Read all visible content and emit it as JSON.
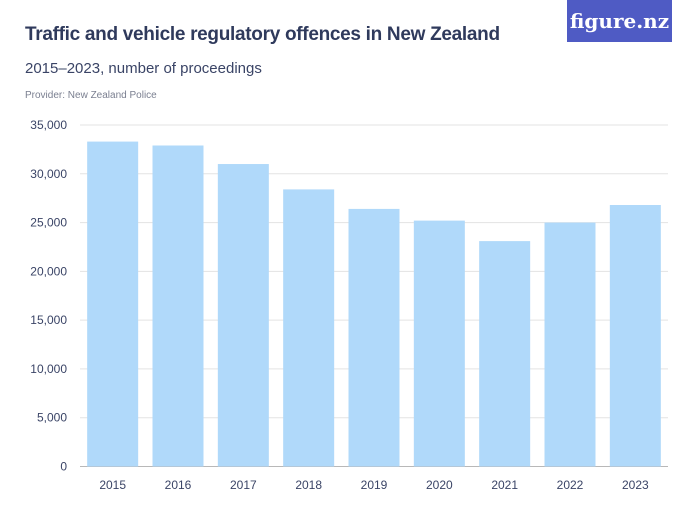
{
  "header": {
    "title": "Traffic and vehicle regulatory offences in New Zealand",
    "subtitle": "2015–2023, number of proceedings",
    "provider": "Provider: New Zealand Police",
    "logo": "figure.nz"
  },
  "colors": {
    "bar": "#b0d9fa",
    "grid": "#e3e3e3",
    "logo_bg": "#4f5bc4"
  },
  "chart_data": {
    "type": "bar",
    "title": "Traffic and vehicle regulatory offences in New Zealand",
    "subtitle": "2015–2023, number of proceedings",
    "categories": [
      "2015",
      "2016",
      "2017",
      "2018",
      "2019",
      "2020",
      "2021",
      "2022",
      "2023"
    ],
    "values": [
      33300,
      32900,
      31000,
      28400,
      26400,
      25200,
      23100,
      25000,
      26800
    ],
    "ylim": [
      0,
      35000
    ],
    "yticks": [
      0,
      5000,
      10000,
      15000,
      20000,
      25000,
      30000,
      35000
    ],
    "ytick_labels": [
      "0",
      "5,000",
      "10,000",
      "15,000",
      "20,000",
      "25,000",
      "30,000",
      "35,000"
    ],
    "grid": true,
    "xlabel": "",
    "ylabel": ""
  }
}
